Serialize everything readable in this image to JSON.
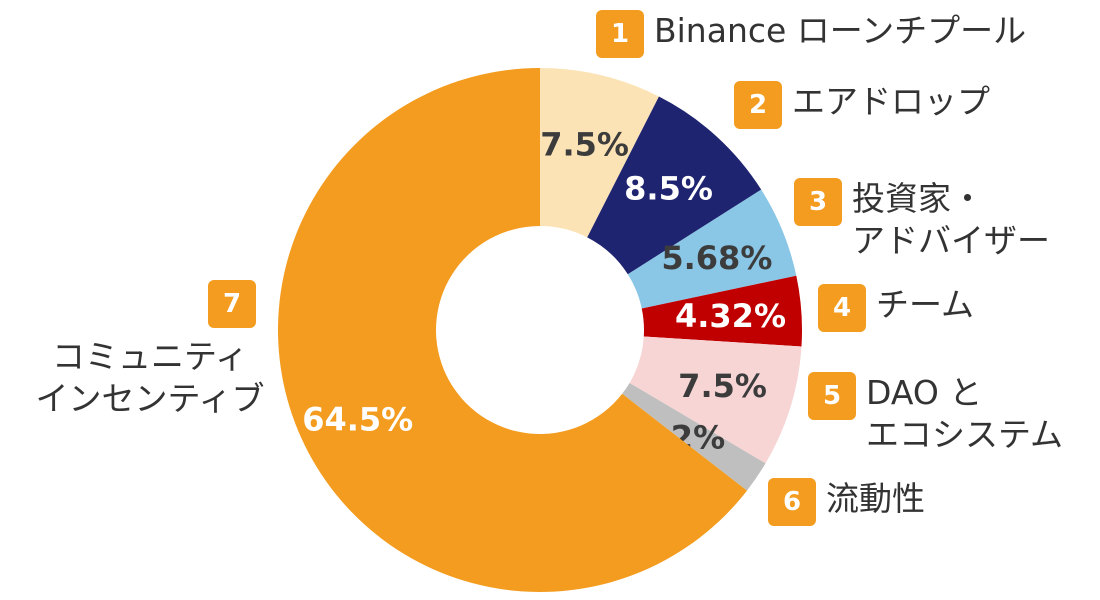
{
  "chart_data": {
    "type": "pie",
    "style": "donut",
    "categories": [
      "Binance ローンチプール",
      "エアドロップ",
      "投資家・\nアドバイザー",
      "チーム",
      "DAO と\nエコシステム",
      "流動性",
      "コミュニティ\nインセンティブ"
    ],
    "numbers": [
      "1",
      "2",
      "3",
      "4",
      "5",
      "6",
      "7"
    ],
    "values": [
      7.5,
      8.5,
      5.68,
      4.32,
      7.5,
      2,
      64.5
    ],
    "value_labels": [
      "7.5%",
      "8.5%",
      "5.68%",
      "4.32%",
      "7.5%",
      "2%",
      "64.5%"
    ],
    "colors": [
      "#FCE3B6",
      "#1F2470",
      "#8AC6E6",
      "#C00000",
      "#F7D5D5",
      "#BFBFBF",
      "#F39C1F"
    ],
    "label_colors": [
      "#3C3C3C",
      "#FFFFFF",
      "#3C3C3C",
      "#FFFFFF",
      "#3C3C3C",
      "#3C3C3C",
      "#FFFFFF"
    ],
    "badge_color": "#F39C1F",
    "start_angle": "12 o'clock",
    "direction": "clockwise"
  }
}
